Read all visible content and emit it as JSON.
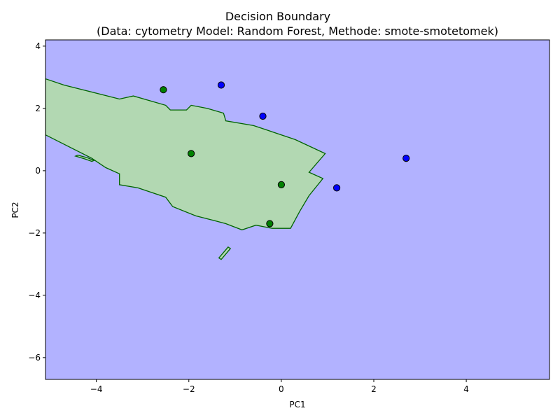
{
  "chart_data": {
    "type": "scatter",
    "title": "Decision Boundary",
    "subtitle": "(Data: cytometry Model: Random Forest, Methode: smote-smotetomek)",
    "xlabel": "PC1",
    "ylabel": "PC2",
    "xlim": [
      -5.1,
      5.8
    ],
    "ylim": [
      -6.7,
      4.2
    ],
    "xticks": [
      -4,
      -2,
      0,
      2,
      4
    ],
    "yticks": [
      -6,
      -4,
      -2,
      0,
      2,
      4
    ],
    "grid": false,
    "colors": {
      "background_region": "#b2b2ff",
      "class_region": "#b2d8b2",
      "boundary": "#006400",
      "point_class_a": "#0000ff",
      "point_class_b": "#008000",
      "point_edge": "#000000"
    },
    "regions": [
      {
        "class": "green",
        "polygon": [
          [
            -5.1,
            2.95
          ],
          [
            -4.7,
            2.75
          ],
          [
            -3.5,
            2.3
          ],
          [
            -3.2,
            2.4
          ],
          [
            -2.85,
            2.25
          ],
          [
            -2.5,
            2.1
          ],
          [
            -2.4,
            1.95
          ],
          [
            -2.2,
            1.95
          ],
          [
            -2.05,
            1.95
          ],
          [
            -1.95,
            2.1
          ],
          [
            -1.6,
            2.0
          ],
          [
            -1.25,
            1.85
          ],
          [
            -1.2,
            1.6
          ],
          [
            -0.6,
            1.45
          ],
          [
            -0.3,
            1.3
          ],
          [
            -0.1,
            1.2
          ],
          [
            0.3,
            1.0
          ],
          [
            0.95,
            0.55
          ],
          [
            0.6,
            -0.05
          ],
          [
            0.9,
            -0.25
          ],
          [
            0.6,
            -0.8
          ],
          [
            0.4,
            -1.3
          ],
          [
            0.2,
            -1.85
          ],
          [
            -0.2,
            -1.85
          ],
          [
            -0.55,
            -1.75
          ],
          [
            -0.85,
            -1.9
          ],
          [
            -1.2,
            -1.7
          ],
          [
            -1.45,
            -1.6
          ],
          [
            -1.85,
            -1.45
          ],
          [
            -2.35,
            -1.15
          ],
          [
            -2.5,
            -0.85
          ],
          [
            -3.1,
            -0.55
          ],
          [
            -3.5,
            -0.45
          ],
          [
            -3.5,
            -0.1
          ],
          [
            -3.8,
            0.1
          ],
          [
            -4.1,
            0.4
          ],
          [
            -5.1,
            1.15
          ]
        ]
      },
      {
        "class": "green",
        "polygon": [
          [
            -1.35,
            -2.8
          ],
          [
            -1.3,
            -2.85
          ],
          [
            -1.1,
            -2.5
          ],
          [
            -1.15,
            -2.45
          ]
        ]
      },
      {
        "class": "green",
        "polygon": [
          [
            -4.4,
            0.5
          ],
          [
            -4.2,
            0.42
          ],
          [
            -4.05,
            0.33
          ],
          [
            -4.1,
            0.3
          ],
          [
            -4.25,
            0.38
          ],
          [
            -4.45,
            0.47
          ]
        ]
      }
    ],
    "series": [
      {
        "class": "green",
        "x": [
          -2.55,
          -1.95,
          0.0,
          -0.25
        ],
        "y": [
          2.6,
          0.55,
          -0.45,
          -1.7
        ]
      },
      {
        "class": "blue",
        "x": [
          -1.3,
          -0.4,
          2.7,
          1.2
        ],
        "y": [
          2.75,
          1.75,
          0.4,
          -0.55
        ]
      }
    ]
  }
}
